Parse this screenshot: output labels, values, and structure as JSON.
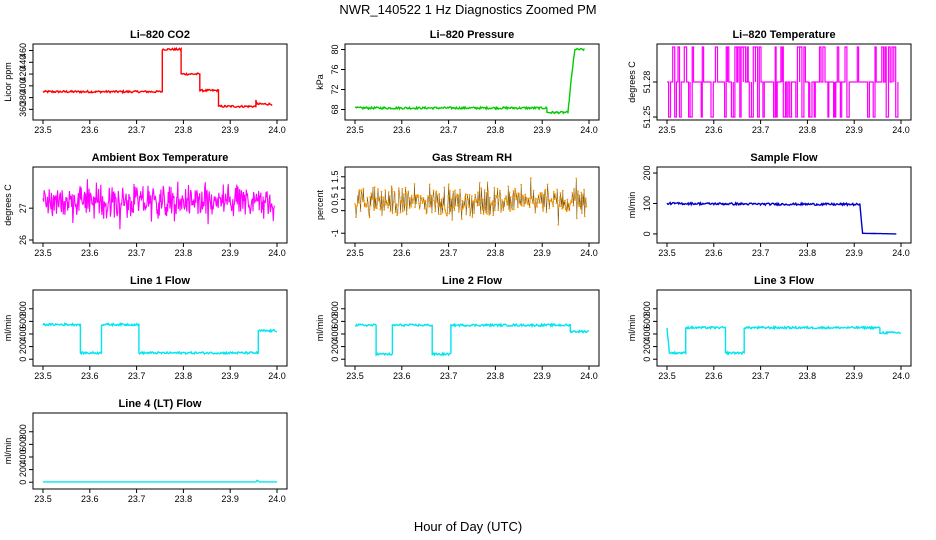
{
  "figure": {
    "title": "NWR_140522  1 Hz Diagnostics Zoomed PM",
    "xlabel": "Hour of Day (UTC)"
  },
  "chart_data": [
    {
      "type": "line",
      "title": "Li–820 CO2",
      "ylabel": "Licor ppm",
      "color": "#ff0000",
      "xlim": [
        23.5,
        24.0
      ],
      "ylim": [
        347,
        466
      ],
      "xticks": [
        23.5,
        23.6,
        23.7,
        23.8,
        23.9,
        24.0
      ],
      "yticks": [
        360,
        380,
        400,
        420,
        440,
        460
      ],
      "style": "step",
      "points": [
        [
          23.5,
          390
        ],
        [
          23.755,
          390
        ],
        [
          23.755,
          462
        ],
        [
          23.795,
          462
        ],
        [
          23.795,
          420
        ],
        [
          23.835,
          420
        ],
        [
          23.835,
          392
        ],
        [
          23.875,
          392
        ],
        [
          23.875,
          365
        ],
        [
          23.955,
          365
        ],
        [
          23.955,
          375
        ],
        [
          23.957,
          369
        ],
        [
          23.99,
          369
        ]
      ]
    },
    {
      "type": "line",
      "title": "Li–820 Pressure",
      "ylabel": "kPa",
      "color": "#00cc00",
      "xlim": [
        23.5,
        24.0
      ],
      "ylim": [
        66.5,
        80.5
      ],
      "xticks": [
        23.5,
        23.6,
        23.7,
        23.8,
        23.9,
        24.0
      ],
      "yticks": [
        68,
        72,
        76,
        80
      ],
      "style": "step",
      "points": [
        [
          23.5,
          68.3
        ],
        [
          23.91,
          68.3
        ],
        [
          23.91,
          67.4
        ],
        [
          23.955,
          67.4
        ],
        [
          23.958,
          70
        ],
        [
          23.962,
          74
        ],
        [
          23.967,
          78
        ],
        [
          23.97,
          80
        ],
        [
          23.99,
          80
        ]
      ]
    },
    {
      "type": "line",
      "title": "Li–820 Temperature",
      "ylabel": "degrees C",
      "color": "#ff00ff",
      "xlim": [
        23.5,
        24.0
      ],
      "ylim": [
        51.25,
        51.31
      ],
      "xticks": [
        23.5,
        23.6,
        23.7,
        23.8,
        23.9,
        24.0
      ],
      "yticks": [
        51.25,
        51.28
      ],
      "style": "binary",
      "levels": [
        51.25,
        51.28,
        51.31
      ],
      "baseline": 51.28
    },
    {
      "type": "line",
      "title": "Ambient Box Temperature",
      "ylabel": "degrees C",
      "color": "#ff00ff",
      "xlim": [
        23.5,
        24.0
      ],
      "ylim": [
        26.0,
        28.2
      ],
      "xticks": [
        23.5,
        23.6,
        23.7,
        23.8,
        23.9,
        24.0
      ],
      "yticks": [
        26.0,
        27.0
      ],
      "style": "noise",
      "center": 27.2,
      "spread": 0.35
    },
    {
      "type": "scatter",
      "title": "Gas Stream RH",
      "ylabel": "percent",
      "color": "#ff9900",
      "xlim": [
        23.5,
        24.0
      ],
      "ylim": [
        -1.3,
        1.8
      ],
      "xticks": [
        23.5,
        23.6,
        23.7,
        23.8,
        23.9,
        24.0
      ],
      "yticks": [
        -1.0,
        0.0,
        0.5,
        1.0,
        1.5
      ],
      "style": "noise",
      "center": 0.4,
      "spread": 0.45
    },
    {
      "type": "line",
      "title": "Sample Flow",
      "ylabel": "ml/min",
      "color": "#0000cc",
      "xlim": [
        23.5,
        24.0
      ],
      "ylim": [
        -20,
        210
      ],
      "xticks": [
        23.5,
        23.6,
        23.7,
        23.8,
        23.9,
        24.0
      ],
      "yticks": [
        0,
        100,
        200
      ],
      "style": "step",
      "points": [
        [
          23.5,
          100
        ],
        [
          23.7,
          98
        ],
        [
          23.912,
          97
        ],
        [
          23.918,
          2
        ],
        [
          23.99,
          0
        ]
      ]
    },
    {
      "type": "line",
      "title": "Line 1 Flow",
      "ylabel": "ml/min",
      "color": "#00e5ee",
      "xlim": [
        23.5,
        24.0
      ],
      "ylim": [
        -60,
        1050
      ],
      "xticks": [
        23.5,
        23.6,
        23.7,
        23.8,
        23.9,
        24.0
      ],
      "yticks": [
        0,
        200,
        400,
        600,
        800
      ],
      "style": "step",
      "points": [
        [
          23.5,
          550
        ],
        [
          23.58,
          550
        ],
        [
          23.58,
          100
        ],
        [
          23.625,
          100
        ],
        [
          23.625,
          550
        ],
        [
          23.705,
          550
        ],
        [
          23.705,
          100
        ],
        [
          23.96,
          100
        ],
        [
          23.96,
          450
        ],
        [
          24.0,
          450
        ]
      ]
    },
    {
      "type": "line",
      "title": "Line 2 Flow",
      "ylabel": "ml/min",
      "color": "#00e5ee",
      "xlim": [
        23.5,
        24.0
      ],
      "ylim": [
        -60,
        1050
      ],
      "xticks": [
        23.5,
        23.6,
        23.7,
        23.8,
        23.9,
        24.0
      ],
      "yticks": [
        0,
        200,
        400,
        600,
        800
      ],
      "style": "step",
      "points": [
        [
          23.5,
          540
        ],
        [
          23.545,
          540
        ],
        [
          23.545,
          80
        ],
        [
          23.58,
          80
        ],
        [
          23.58,
          540
        ],
        [
          23.665,
          540
        ],
        [
          23.665,
          80
        ],
        [
          23.705,
          80
        ],
        [
          23.705,
          540
        ],
        [
          23.96,
          540
        ],
        [
          23.96,
          440
        ],
        [
          24.0,
          440
        ]
      ]
    },
    {
      "type": "line",
      "title": "Line 3 Flow",
      "ylabel": "ml/min",
      "color": "#00e5ee",
      "xlim": [
        23.5,
        24.0
      ],
      "ylim": [
        -60,
        1050
      ],
      "xticks": [
        23.5,
        23.6,
        23.7,
        23.8,
        23.9,
        24.0
      ],
      "yticks": [
        0,
        200,
        400,
        600,
        800
      ],
      "style": "step",
      "points": [
        [
          23.5,
          500
        ],
        [
          23.505,
          100
        ],
        [
          23.54,
          100
        ],
        [
          23.54,
          500
        ],
        [
          23.625,
          500
        ],
        [
          23.625,
          100
        ],
        [
          23.665,
          100
        ],
        [
          23.665,
          500
        ],
        [
          23.955,
          500
        ],
        [
          23.955,
          420
        ],
        [
          24.0,
          420
        ]
      ]
    },
    {
      "type": "line",
      "title": "Line 4 (LT) Flow",
      "ylabel": "ml/min",
      "color": "#00e5ee",
      "xlim": [
        23.5,
        24.0
      ],
      "ylim": [
        -60,
        1050
      ],
      "xticks": [
        23.5,
        23.6,
        23.7,
        23.8,
        23.9,
        24.0
      ],
      "yticks": [
        0,
        200,
        400,
        600,
        800
      ],
      "style": "step",
      "points": [
        [
          23.5,
          5
        ],
        [
          23.955,
          5
        ],
        [
          23.958,
          30
        ],
        [
          23.962,
          5
        ],
        [
          24.0,
          5
        ]
      ]
    }
  ]
}
